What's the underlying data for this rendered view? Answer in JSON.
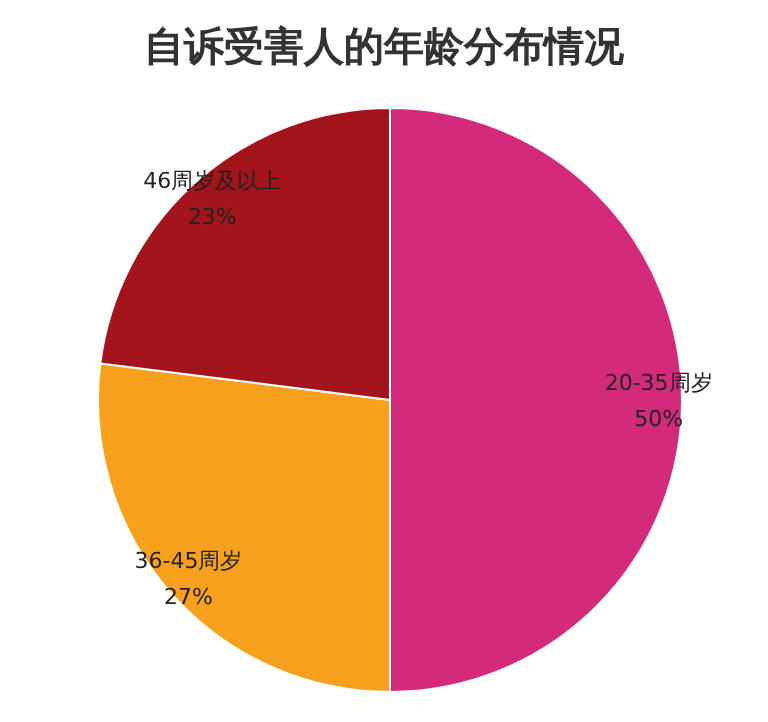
{
  "chart_data": {
    "type": "pie",
    "title": "自诉受害人的年龄分布情况",
    "categories": [
      "20-35周岁",
      "36-45周岁",
      "46周岁及以上"
    ],
    "values": [
      50,
      27,
      23
    ],
    "value_labels": [
      "50%",
      "27%",
      "23%"
    ],
    "colors": [
      "#d42a7c",
      "#f7a01e",
      "#a3141c"
    ]
  }
}
